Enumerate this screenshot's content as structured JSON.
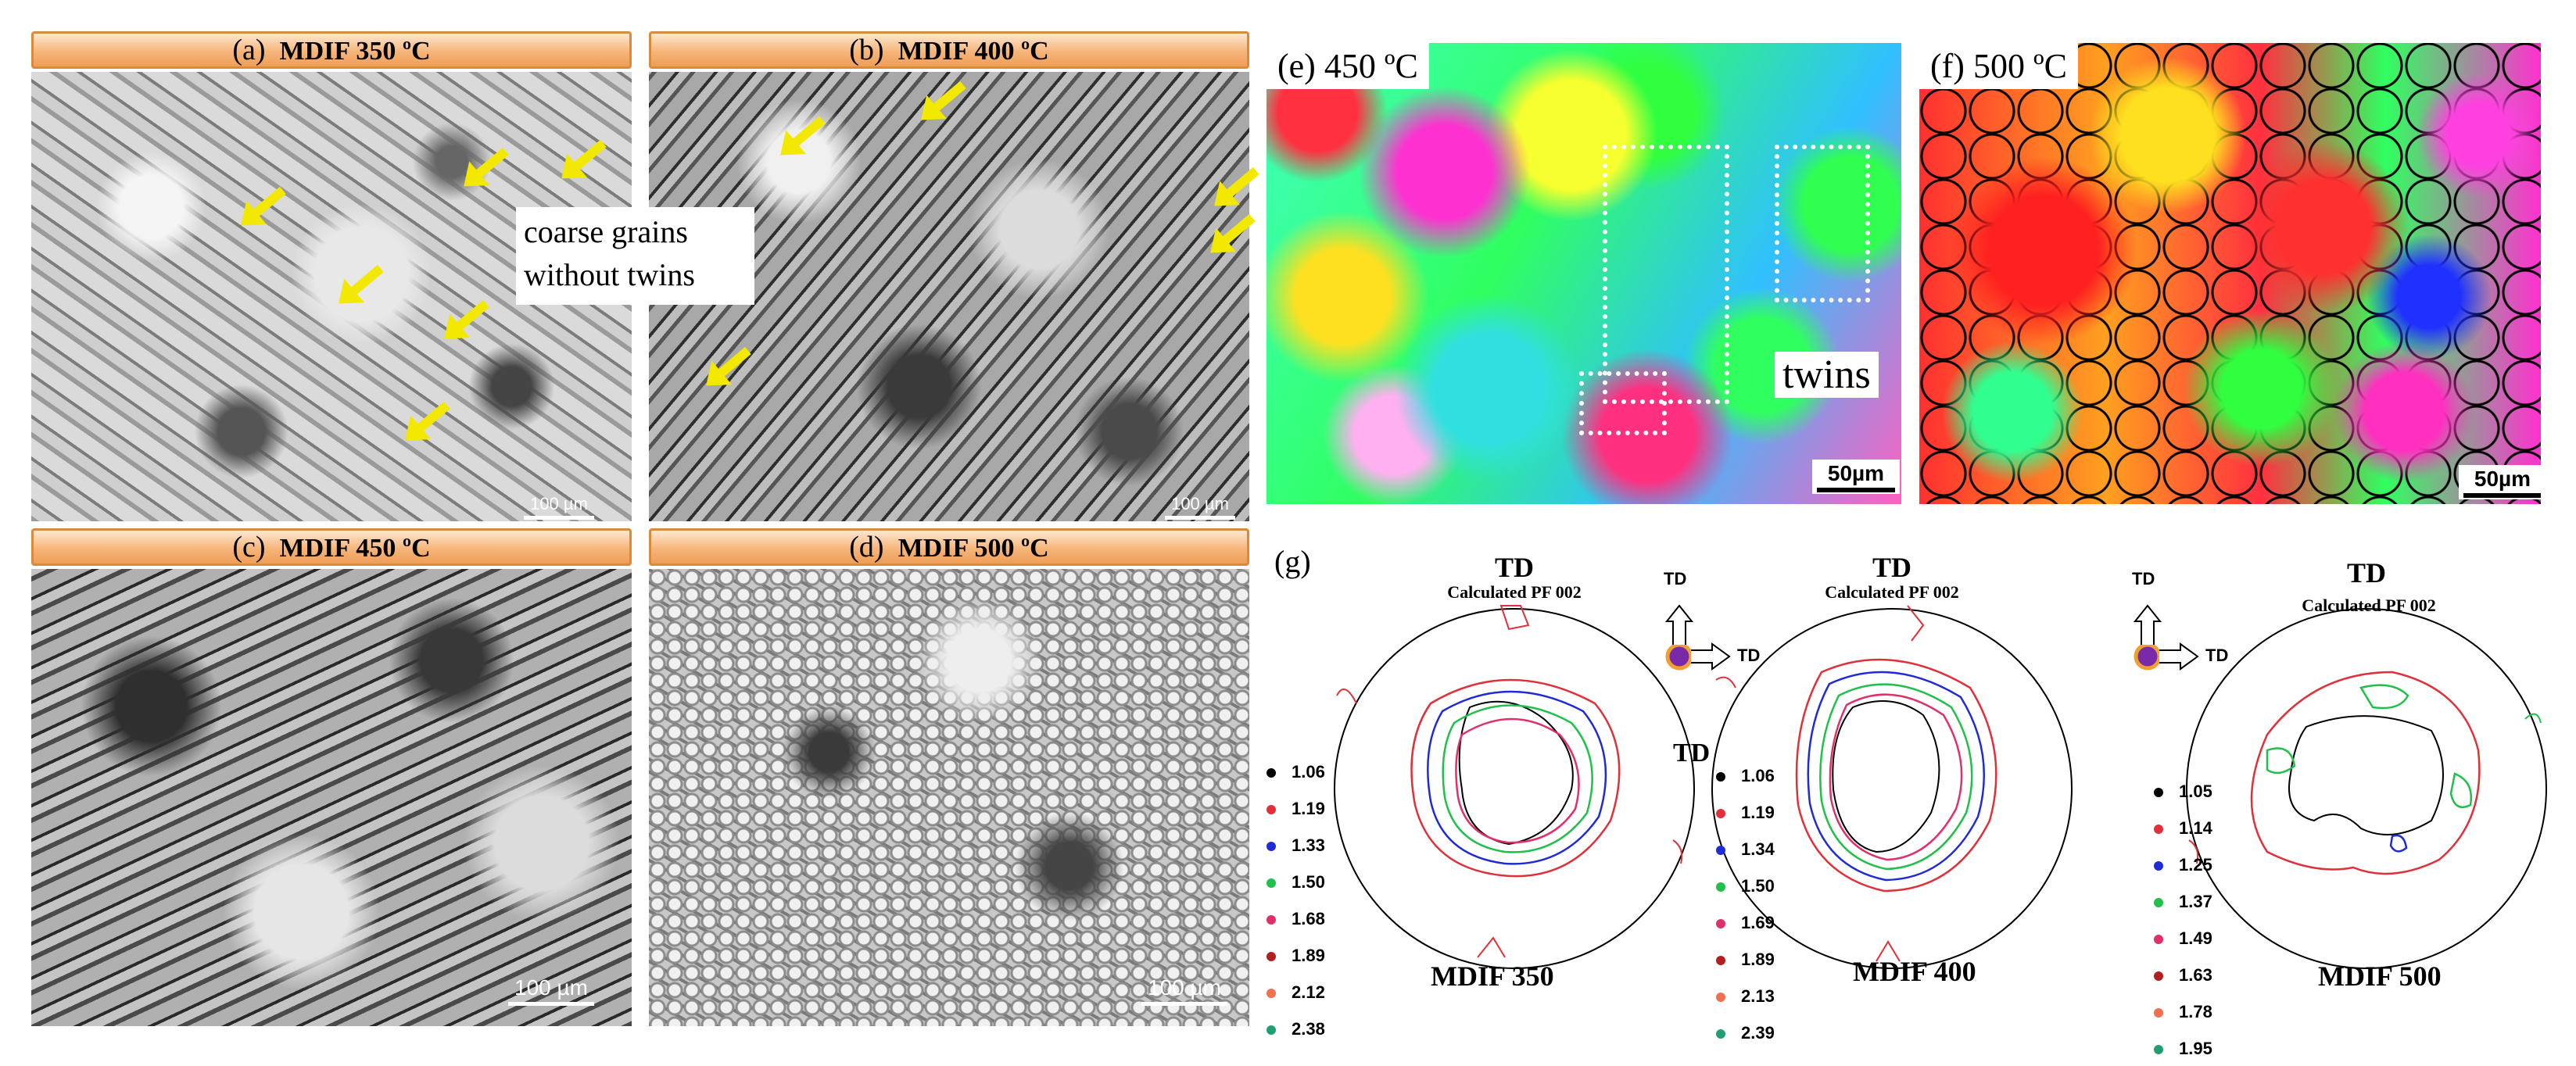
{
  "panels": {
    "a": {
      "label": "(a)",
      "title": "MDIF  350 ºC",
      "scale": "100 µm"
    },
    "b": {
      "label": "(b)",
      "title": "MDIF  400 ºC",
      "scale": "100 µm"
    },
    "c": {
      "label": "(c)",
      "title": "MDIF  450 ºC",
      "scale": "100 µm"
    },
    "d": {
      "label": "(d)",
      "title": "MDIF  500 ºC",
      "scale": "100 µm"
    },
    "e": {
      "label": "(e)  450 ºC",
      "scale": "50µm"
    },
    "f": {
      "label": "(f)  500 ºC",
      "scale": "50µm"
    },
    "g": {
      "label": "(g)"
    }
  },
  "annotations": {
    "coarse_grains_line1": "coarse grains",
    "coarse_grains_line2": "without twins",
    "twins": "twins"
  },
  "pole_figures": [
    {
      "td": "TD",
      "subtitle": "Calculated PF 002",
      "caption": "MDIF 350",
      "legend": [
        "1.06",
        "1.19",
        "1.33",
        "1.50",
        "1.68",
        "1.89",
        "2.12",
        "2.38"
      ]
    },
    {
      "td": "TD",
      "subtitle": "Calculated PF 002",
      "caption": "MDIF 400",
      "legend": [
        "1.06",
        "1.19",
        "1.34",
        "1.50",
        "1.69",
        "1.89",
        "2.13",
        "2.39"
      ]
    },
    {
      "td": "TD",
      "subtitle": "Calculated PF 002",
      "caption": "MDIF 500",
      "legend": [
        "1.05",
        "1.14",
        "1.25",
        "1.37",
        "1.49",
        "1.63",
        "1.78",
        "1.95"
      ]
    }
  ],
  "legend_colors": [
    "#000000",
    "#e0303a",
    "#1f2bd6",
    "#20c04a",
    "#e0306a",
    "#b02020",
    "#f07050",
    "#20a070"
  ],
  "side_td_label": "TD",
  "axis_glyph": {
    "up": "TD",
    "right": "TD"
  }
}
